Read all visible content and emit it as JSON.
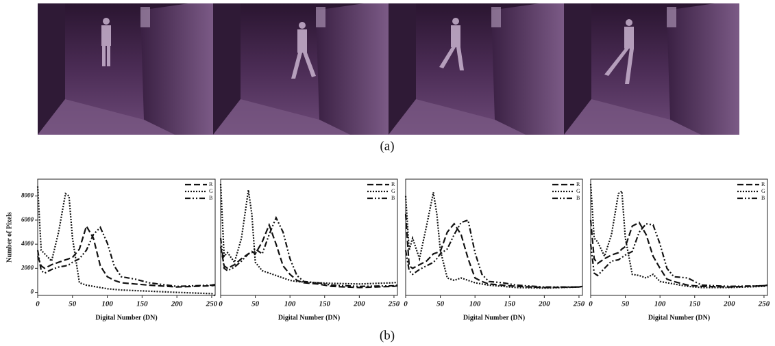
{
  "figure": {
    "caption_a": "(a)",
    "caption_b": "(b)"
  },
  "chart_data": [
    {
      "type": "line",
      "xlabel": "Digital Number (DN)",
      "ylabel": "Number of Pixels",
      "x": [
        0,
        5,
        10,
        20,
        30,
        40,
        45,
        50,
        60,
        70,
        80,
        90,
        100,
        110,
        120,
        140,
        160,
        200,
        250,
        255
      ],
      "xlim": [
        0,
        255
      ],
      "ylim": [
        -250,
        9400
      ],
      "xticks": [
        0,
        50,
        100,
        150,
        200,
        250
      ],
      "yticks": [
        0,
        2000,
        4000,
        6000,
        8000
      ],
      "legend": "upper right",
      "series": [
        {
          "name": "R",
          "color": "#111111",
          "style": "dashed",
          "values": [
            3000,
            2200,
            2000,
            2300,
            2500,
            2700,
            2800,
            2900,
            3600,
            5500,
            4500,
            2200,
            1300,
            1000,
            800,
            700,
            600,
            450,
            550,
            600
          ]
        },
        {
          "name": "G",
          "color": "#111111",
          "style": "dotted",
          "values": [
            8800,
            3500,
            3200,
            2600,
            5000,
            8200,
            8000,
            4500,
            800,
            600,
            500,
            400,
            300,
            250,
            200,
            150,
            100,
            0,
            -100,
            -300
          ]
        },
        {
          "name": "B",
          "color": "#111111",
          "style": "dashdotdot",
          "values": [
            3500,
            1800,
            1600,
            1900,
            2100,
            2200,
            2300,
            2500,
            2800,
            3500,
            4800,
            5400,
            4100,
            2200,
            1300,
            1100,
            800,
            500,
            600,
            650
          ]
        }
      ]
    },
    {
      "type": "line",
      "xlabel": "Digital Number (DN)",
      "x": [
        0,
        5,
        10,
        20,
        30,
        40,
        45,
        50,
        60,
        70,
        80,
        90,
        100,
        110,
        120,
        140,
        160,
        200,
        250,
        255
      ],
      "xlim": [
        0,
        255
      ],
      "ylim": [
        -250,
        9400
      ],
      "xticks": [
        0,
        50,
        100,
        150,
        200,
        250
      ],
      "legend": "upper right",
      "series": [
        {
          "name": "R",
          "color": "#111111",
          "style": "dashed",
          "values": [
            3800,
            2200,
            2000,
            2300,
            2800,
            3200,
            3400,
            3200,
            4200,
            5600,
            4000,
            2200,
            1500,
            1000,
            800,
            700,
            500,
            400,
            500,
            550
          ]
        },
        {
          "name": "G",
          "color": "#111111",
          "style": "dotted",
          "values": [
            9000,
            3000,
            3300,
            2500,
            4500,
            8500,
            6500,
            2500,
            1800,
            1600,
            1400,
            1200,
            1000,
            900,
            850,
            800,
            750,
            700,
            800,
            850
          ]
        },
        {
          "name": "B",
          "color": "#111111",
          "style": "dashdotdot",
          "values": [
            4500,
            2000,
            1800,
            2100,
            2600,
            3200,
            3300,
            3600,
            3200,
            4800,
            6200,
            5000,
            2800,
            1400,
            900,
            800,
            600,
            500,
            550,
            600
          ]
        }
      ]
    },
    {
      "type": "line",
      "xlabel": "Digital Number (DN)",
      "x": [
        0,
        5,
        10,
        20,
        30,
        40,
        45,
        50,
        60,
        70,
        80,
        90,
        100,
        110,
        120,
        140,
        160,
        200,
        250,
        255
      ],
      "xlim": [
        0,
        255
      ],
      "ylim": [
        -250,
        9400
      ],
      "xticks": [
        0,
        50,
        100,
        150,
        200,
        250
      ],
      "legend": "upper right",
      "series": [
        {
          "name": "R",
          "color": "#111111",
          "style": "dashed",
          "values": [
            6500,
            2200,
            2000,
            2300,
            2600,
            3200,
            3300,
            3400,
            5000,
            5700,
            4800,
            2800,
            1200,
            900,
            700,
            600,
            500,
            400,
            450,
            500
          ]
        },
        {
          "name": "G",
          "color": "#111111",
          "style": "dotted",
          "values": [
            8000,
            3500,
            4500,
            2800,
            5500,
            8300,
            6500,
            3500,
            1200,
            1000,
            1200,
            1000,
            800,
            700,
            600,
            500,
            400,
            350,
            450,
            500
          ]
        },
        {
          "name": "B",
          "color": "#111111",
          "style": "dashdotdot",
          "values": [
            3500,
            1800,
            1500,
            1900,
            2200,
            2500,
            2800,
            3200,
            3600,
            4800,
            5800,
            6000,
            3300,
            1500,
            900,
            800,
            600,
            450,
            450,
            500
          ]
        }
      ]
    },
    {
      "type": "line",
      "xlabel": "Digital Number (DN)",
      "x": [
        0,
        5,
        10,
        20,
        30,
        40,
        45,
        50,
        60,
        70,
        80,
        90,
        100,
        110,
        120,
        140,
        160,
        200,
        250,
        255
      ],
      "xlim": [
        0,
        255
      ],
      "ylim": [
        -250,
        9400
      ],
      "xticks": [
        0,
        50,
        100,
        150,
        200,
        250
      ],
      "legend": "upper right",
      "series": [
        {
          "name": "R",
          "color": "#111111",
          "style": "dashed",
          "values": [
            6000,
            2800,
            2400,
            2800,
            3100,
            3300,
            3600,
            3800,
            5500,
            5800,
            4800,
            3000,
            2000,
            1100,
            900,
            600,
            500,
            450,
            550,
            600
          ]
        },
        {
          "name": "G",
          "color": "#111111",
          "style": "dotted",
          "values": [
            9000,
            4500,
            4200,
            3000,
            4800,
            8200,
            8400,
            4500,
            1500,
            1400,
            1200,
            1500,
            900,
            800,
            700,
            500,
            400,
            400,
            500,
            600
          ]
        },
        {
          "name": "B",
          "color": "#111111",
          "style": "dashdotdot",
          "values": [
            4000,
            1600,
            1400,
            2000,
            2600,
            2700,
            2900,
            3100,
            3400,
            5000,
            5700,
            5600,
            4000,
            2000,
            1300,
            1200,
            600,
            500,
            550,
            600
          ]
        }
      ]
    }
  ]
}
